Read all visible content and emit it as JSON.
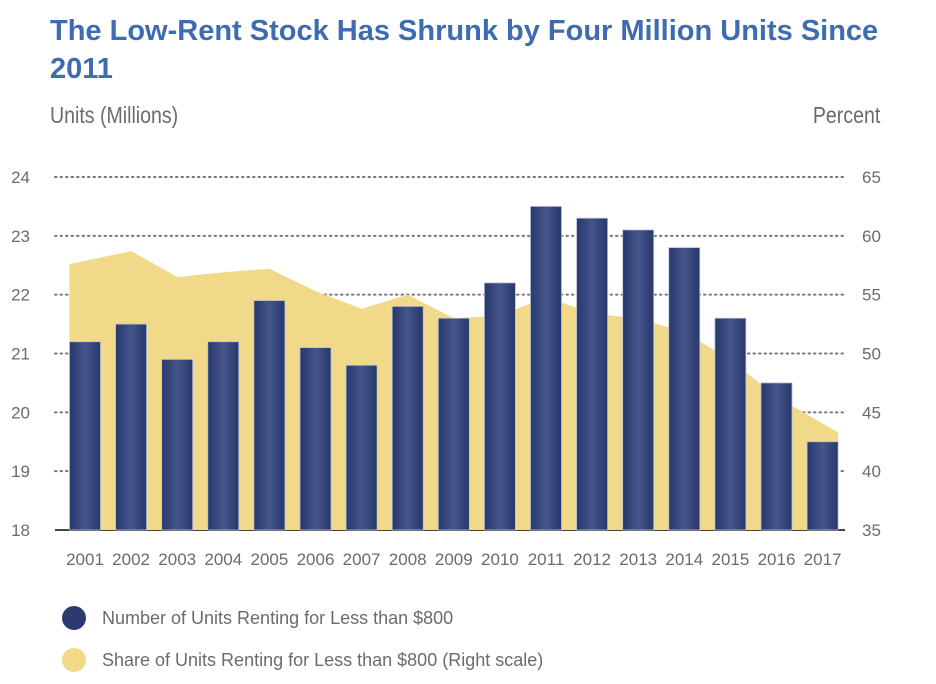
{
  "chart_data": {
    "type": "bar",
    "title": "The Low-Rent Stock Has Shrunk by Four Million Units Since 2011",
    "ylabel_left": "Units (Millions)",
    "ylabel_right": "Percent",
    "categories": [
      "2001",
      "2002",
      "2003",
      "2004",
      "2005",
      "2006",
      "2007",
      "2008",
      "2009",
      "2010",
      "2011",
      "2012",
      "2013",
      "2014",
      "2015",
      "2016",
      "2017"
    ],
    "ylim_left": [
      18,
      24
    ],
    "yticks_left": [
      18,
      19,
      20,
      21,
      22,
      23,
      24
    ],
    "ylim_right": [
      35,
      65
    ],
    "yticks_right": [
      35,
      40,
      45,
      50,
      55,
      60,
      65
    ],
    "grid": true,
    "legend_placement": "bottom-left",
    "series": [
      {
        "name": "Number of Units Renting for Less than $800",
        "type": "bar",
        "axis": "left",
        "color": "#2b3b72",
        "values": [
          21.2,
          21.5,
          20.9,
          21.2,
          21.9,
          21.1,
          20.8,
          21.8,
          21.6,
          22.2,
          23.5,
          23.3,
          23.1,
          22.8,
          21.6,
          20.5,
          19.5
        ]
      },
      {
        "name": "Share of Units Renting for Less than $800 (Right scale)",
        "type": "area",
        "axis": "right",
        "color": "#f1d98a",
        "values": [
          57.6,
          58.7,
          56.5,
          56.9,
          57.2,
          55.3,
          53.8,
          55.0,
          53.0,
          53.2,
          54.8,
          53.4,
          53.0,
          51.8,
          49.5,
          46.3,
          43.3
        ]
      }
    ]
  }
}
